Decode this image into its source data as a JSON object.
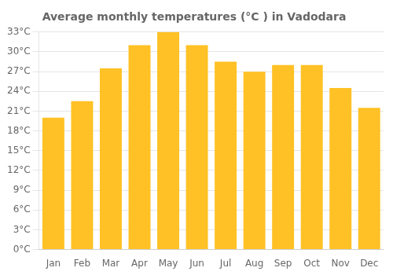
{
  "chart_data": {
    "type": "bar",
    "title": "Average monthly temperatures (°C ) in Vadodara",
    "categories": [
      "Jan",
      "Feb",
      "Mar",
      "Apr",
      "May",
      "Jun",
      "Jul",
      "Aug",
      "Sep",
      "Oct",
      "Nov",
      "Dec"
    ],
    "values": [
      20,
      22.5,
      27.5,
      31,
      33,
      31,
      28.5,
      27,
      28,
      28,
      24.5,
      21.5
    ],
    "color": "#FFC125",
    "ylim": [
      0,
      33
    ],
    "yticks": [
      {
        "value": 0,
        "label": "0°C"
      },
      {
        "value": 3,
        "label": "3°C"
      },
      {
        "value": 6,
        "label": "6°C"
      },
      {
        "value": 9,
        "label": "9°C"
      },
      {
        "value": 12,
        "label": "12°C"
      },
      {
        "value": 15,
        "label": "15°C"
      },
      {
        "value": 18,
        "label": "18°C"
      },
      {
        "value": 21,
        "label": "21°C"
      },
      {
        "value": 24,
        "label": "24°C"
      },
      {
        "value": 27,
        "label": "27°C"
      },
      {
        "value": 30,
        "label": "30°C"
      },
      {
        "value": 33,
        "label": "33°C"
      }
    ],
    "grid": true
  }
}
